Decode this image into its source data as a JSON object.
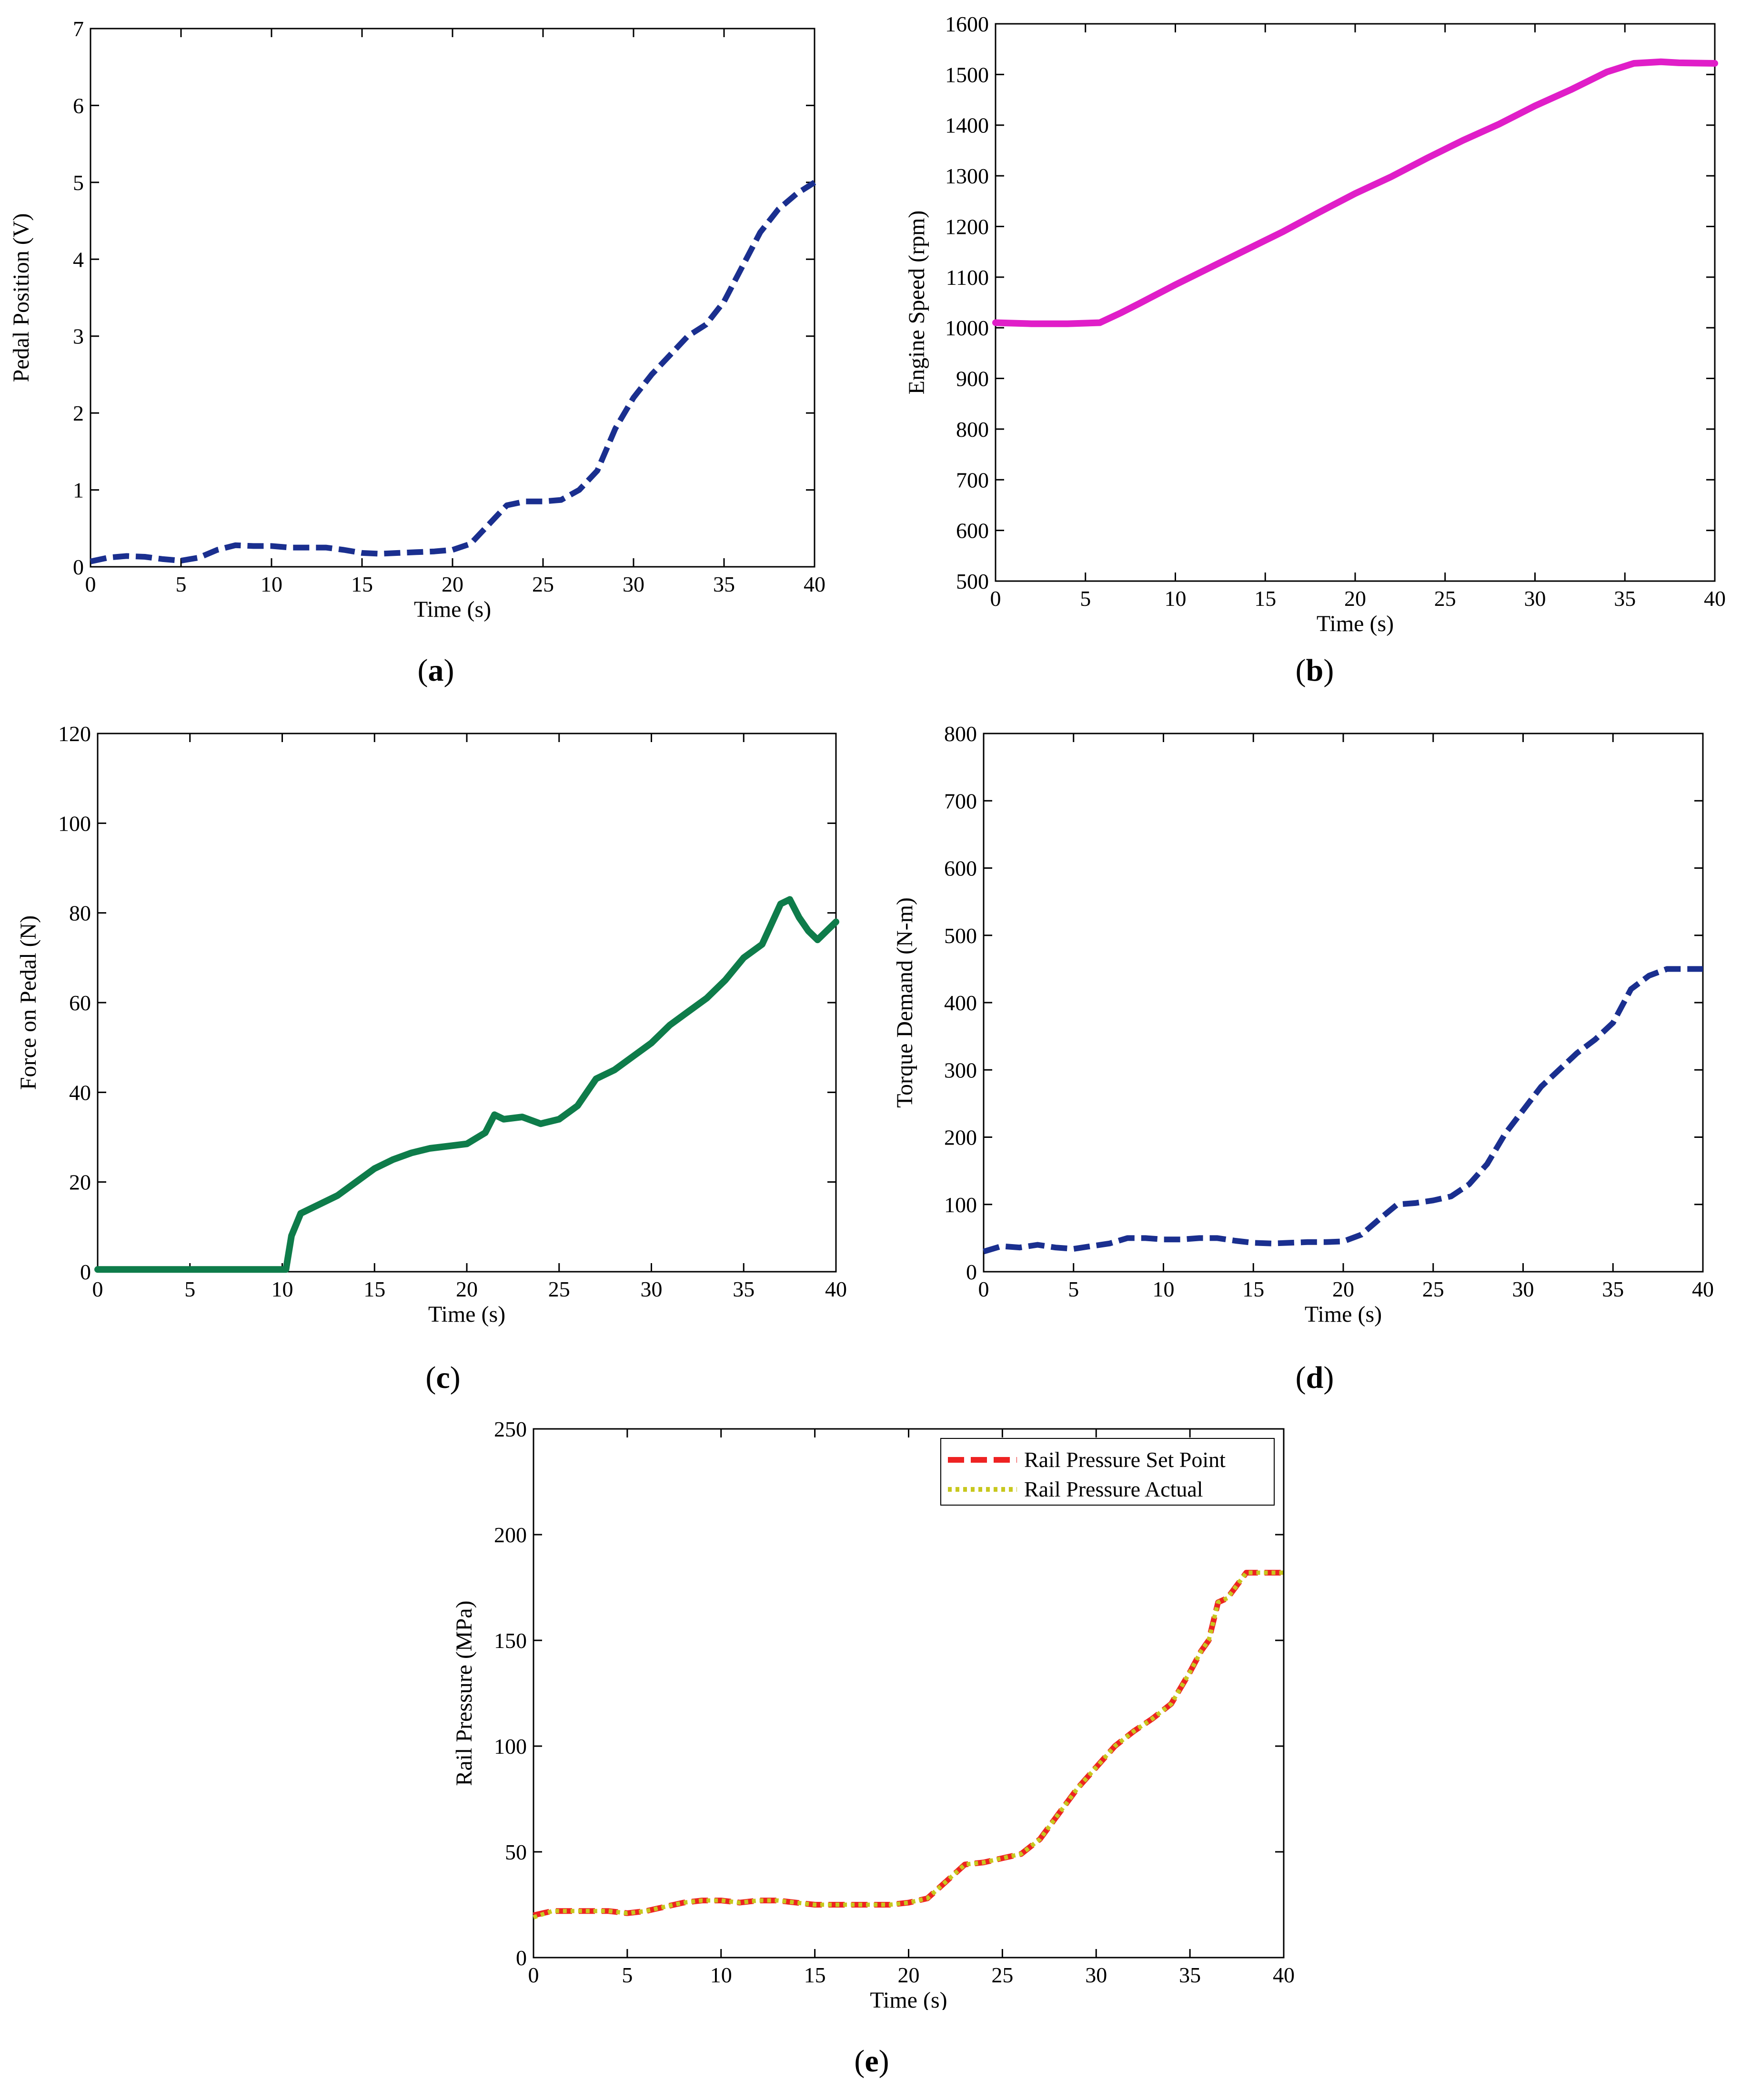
{
  "figure": {
    "panels": [
      {
        "caption_letter": "a",
        "chart_data": {
          "type": "line",
          "title": "",
          "xlabel": "Time (s)",
          "ylabel": "Pedal Position (V)",
          "xlim": [
            0,
            40
          ],
          "ylim": [
            0,
            7
          ],
          "xticks": [
            0,
            5,
            10,
            15,
            20,
            25,
            30,
            35,
            40
          ],
          "yticks": [
            0,
            1,
            2,
            3,
            4,
            5,
            6,
            7
          ],
          "series": [
            {
              "name": "Pedal Position",
              "color": "#1a2f8f",
              "style": "dashed",
              "x": [
                0,
                1,
                2,
                3,
                4,
                5,
                6,
                7,
                8,
                9,
                10,
                11,
                12,
                13,
                14,
                15,
                16,
                17,
                18,
                19,
                20,
                21,
                22,
                23,
                24,
                25,
                26,
                27,
                28,
                29,
                30,
                31,
                32,
                33,
                34,
                35,
                36,
                37,
                38,
                39,
                40
              ],
              "values": [
                0.07,
                0.12,
                0.14,
                0.13,
                0.1,
                0.08,
                0.12,
                0.22,
                0.28,
                0.27,
                0.27,
                0.25,
                0.25,
                0.25,
                0.22,
                0.18,
                0.17,
                0.18,
                0.19,
                0.2,
                0.22,
                0.3,
                0.55,
                0.8,
                0.85,
                0.85,
                0.87,
                1.0,
                1.25,
                1.8,
                2.2,
                2.5,
                2.75,
                3.0,
                3.15,
                3.45,
                3.9,
                4.35,
                4.65,
                4.85,
                5.0
              ]
            }
          ]
        }
      },
      {
        "caption_letter": "b",
        "chart_data": {
          "type": "line",
          "title": "",
          "xlabel": "Time (s)",
          "ylabel": "Engine Speed (rpm)",
          "xlim": [
            0,
            40
          ],
          "ylim": [
            500,
            1600
          ],
          "xticks": [
            0,
            5,
            10,
            15,
            20,
            25,
            30,
            35,
            40
          ],
          "yticks": [
            500,
            600,
            700,
            800,
            900,
            1000,
            1100,
            1200,
            1300,
            1400,
            1500,
            1600
          ],
          "series": [
            {
              "name": "Engine Speed",
              "color": "#e01ec8",
              "style": "solid",
              "x": [
                0,
                2,
                4,
                5.8,
                7,
                8,
                10,
                12,
                14,
                16,
                18,
                20,
                22,
                24,
                26,
                28,
                30,
                32,
                34,
                35.5,
                37,
                38,
                40
              ],
              "values": [
                1010,
                1008,
                1008,
                1010,
                1030,
                1048,
                1085,
                1120,
                1155,
                1190,
                1228,
                1265,
                1298,
                1335,
                1370,
                1402,
                1438,
                1470,
                1505,
                1522,
                1525,
                1523,
                1522
              ]
            }
          ]
        }
      },
      {
        "caption_letter": "c",
        "chart_data": {
          "type": "line",
          "title": "",
          "xlabel": "Time (s)",
          "ylabel": "Force on Pedal (N)",
          "xlim": [
            0,
            40
          ],
          "ylim": [
            0,
            120
          ],
          "xticks": [
            0,
            5,
            10,
            15,
            20,
            25,
            30,
            35,
            40
          ],
          "yticks": [
            0,
            20,
            40,
            60,
            80,
            100,
            120
          ],
          "series": [
            {
              "name": "Force on Pedal",
              "color": "#0e7c4a",
              "style": "solid",
              "x": [
                0,
                2,
                4,
                6,
                8,
                10.2,
                10.5,
                11,
                12,
                13,
                14,
                15,
                16,
                17,
                18,
                19,
                20,
                21,
                21.5,
                22,
                23,
                24,
                25,
                26,
                27,
                28,
                29,
                30,
                31,
                32,
                33,
                34,
                35,
                36,
                37,
                37.5,
                38,
                38.5,
                39,
                40
              ],
              "values": [
                0.5,
                0.5,
                0.5,
                0.5,
                0.5,
                0.5,
                8,
                13,
                15,
                17,
                20,
                23,
                25,
                26.5,
                27.5,
                28,
                28.5,
                31,
                35,
                34,
                34.5,
                33,
                34,
                37,
                43,
                45,
                48,
                51,
                55,
                58,
                61,
                65,
                70,
                73,
                82,
                83,
                79,
                76,
                74,
                78
              ]
            }
          ]
        }
      },
      {
        "caption_letter": "d",
        "chart_data": {
          "type": "line",
          "title": "",
          "xlabel": "Time (s)",
          "ylabel": "Torque Demand (N-m)",
          "xlim": [
            0,
            40
          ],
          "ylim": [
            0,
            800
          ],
          "xticks": [
            0,
            5,
            10,
            15,
            20,
            25,
            30,
            35,
            40
          ],
          "yticks": [
            0,
            100,
            200,
            300,
            400,
            500,
            600,
            700,
            800
          ],
          "series": [
            {
              "name": "Torque Demand",
              "color": "#1a2f8f",
              "style": "dashed",
              "x": [
                0,
                1,
                2,
                3,
                4,
                5,
                6,
                7,
                8,
                9,
                10,
                11,
                12,
                13,
                14,
                15,
                16,
                17,
                18,
                19,
                20,
                21,
                22,
                23,
                24,
                25,
                26,
                27,
                28,
                29,
                30,
                31,
                32,
                33,
                34,
                35,
                36,
                37,
                38,
                39,
                40
              ],
              "values": [
                30,
                38,
                36,
                40,
                36,
                34,
                38,
                42,
                50,
                50,
                48,
                48,
                50,
                50,
                46,
                43,
                42,
                43,
                44,
                44,
                45,
                55,
                78,
                100,
                102,
                106,
                112,
                130,
                160,
                205,
                240,
                275,
                300,
                325,
                345,
                370,
                420,
                440,
                450,
                450,
                450
              ]
            }
          ]
        }
      },
      {
        "caption_letter": "e",
        "chart_data": {
          "type": "line",
          "title": "",
          "xlabel": "Time (s)",
          "ylabel": "Rail Pressure (MPa)",
          "xlim": [
            0,
            40
          ],
          "ylim": [
            0,
            250
          ],
          "xticks": [
            0,
            5,
            10,
            15,
            20,
            25,
            30,
            35,
            40
          ],
          "yticks": [
            0,
            50,
            100,
            150,
            200,
            250
          ],
          "legend_position": "top-right",
          "series": [
            {
              "name": "Rail Pressure Set Point",
              "color": "#ee2222",
              "style": "dashed",
              "x": [
                0,
                1,
                2,
                3,
                4,
                5,
                6,
                7,
                8,
                9,
                10,
                11,
                12,
                13,
                14,
                15,
                16,
                17,
                18,
                19,
                20,
                21,
                22,
                23,
                24,
                25,
                26,
                27,
                28,
                29,
                30,
                31,
                32,
                33,
                34,
                35,
                35.6,
                36,
                36.5,
                37,
                38,
                39,
                40
              ],
              "values": [
                20,
                22,
                22,
                22,
                22,
                21,
                22,
                24,
                26,
                27,
                27,
                26,
                27,
                27,
                26,
                25,
                25,
                25,
                25,
                25,
                26,
                28,
                36,
                44,
                45,
                47,
                49,
                56,
                68,
                80,
                90,
                100,
                107,
                113,
                120,
                135,
                145,
                150,
                168,
                170,
                182,
                182,
                182
              ]
            },
            {
              "name": "Rail Pressure Actual",
              "color": "#c8c81e",
              "style": "dotted",
              "x": [
                0,
                1,
                2,
                3,
                4,
                5,
                6,
                7,
                8,
                9,
                10,
                11,
                12,
                13,
                14,
                15,
                16,
                17,
                18,
                19,
                20,
                21,
                22,
                23,
                24,
                25,
                26,
                27,
                28,
                29,
                30,
                31,
                32,
                33,
                34,
                35,
                35.6,
                36,
                36.5,
                37,
                38,
                39,
                40
              ],
              "values": [
                19,
                22,
                22,
                22,
                22,
                21,
                22,
                24,
                26,
                27,
                27,
                26,
                27,
                27,
                26,
                25,
                25,
                25,
                25,
                25,
                26,
                28,
                36,
                44,
                45,
                47,
                49,
                56,
                68,
                80,
                90,
                100,
                107,
                113,
                120,
                135,
                145,
                150,
                168,
                170,
                182,
                182,
                182
              ]
            }
          ]
        }
      }
    ]
  }
}
